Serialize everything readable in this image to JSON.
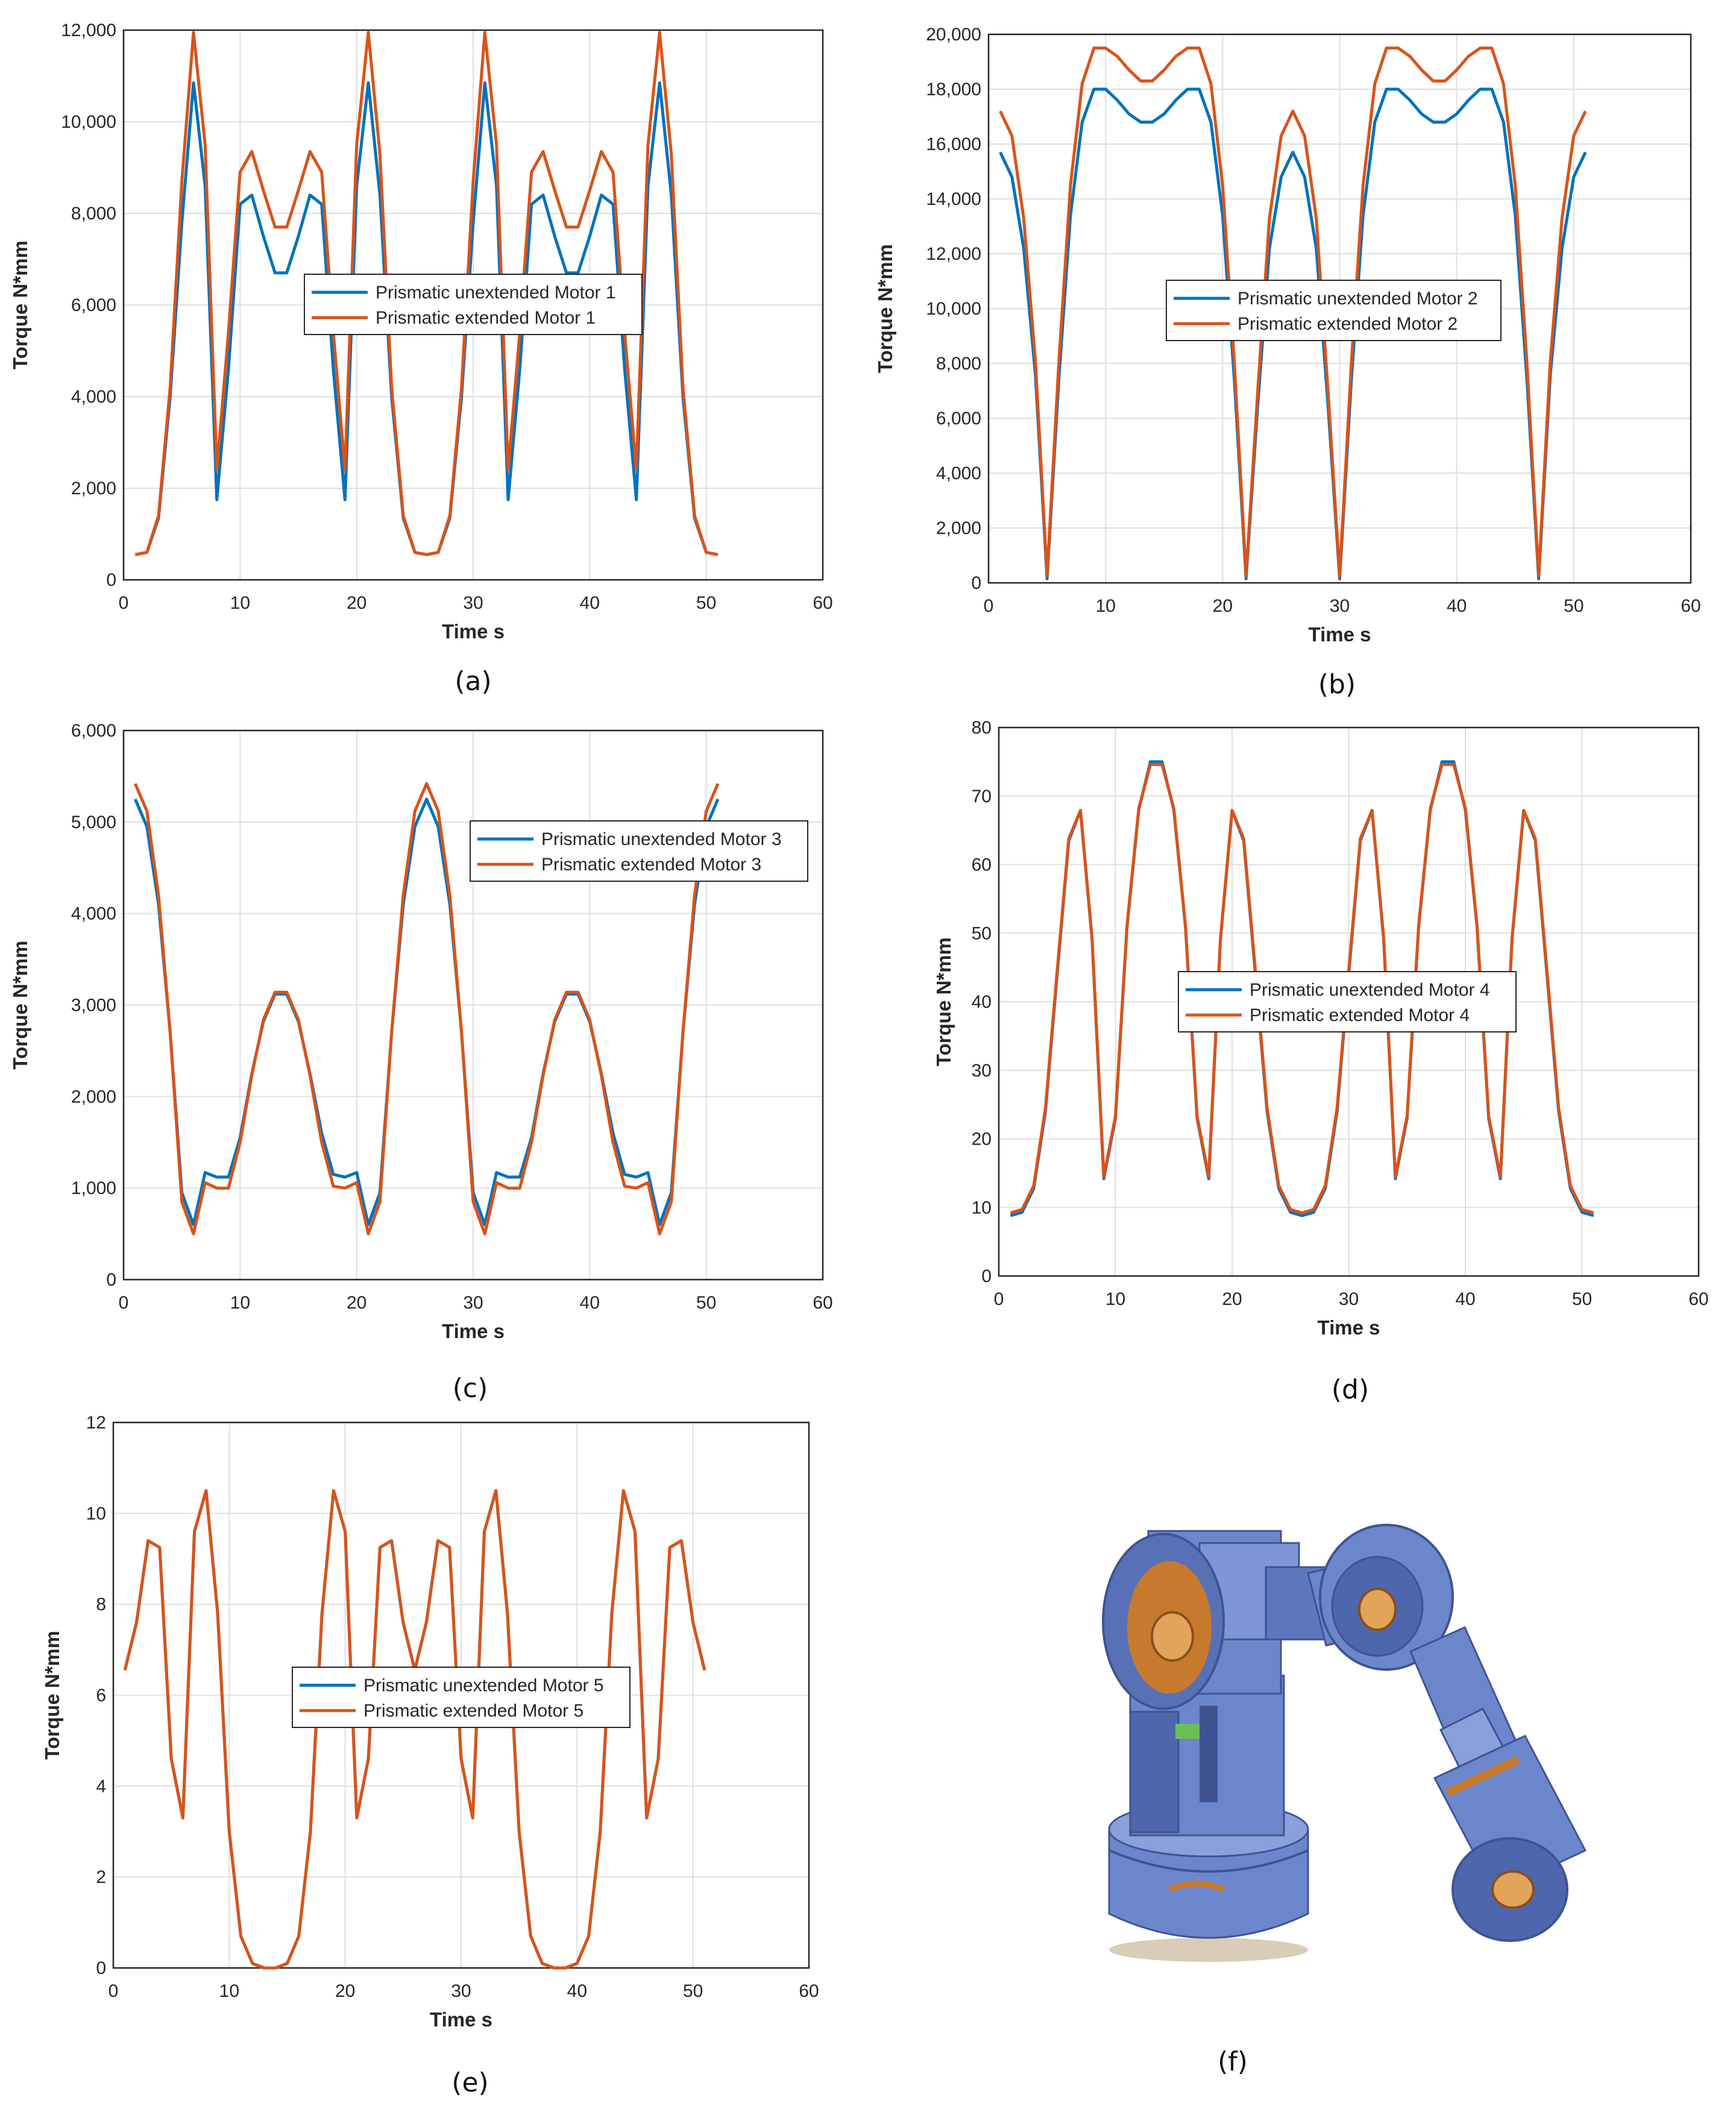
{
  "colors": {
    "unextended": "#0072BD",
    "extended": "#D95319",
    "grid": "#DFDFDF",
    "axis": "#262626"
  },
  "chart_data": [
    {
      "type": "line",
      "panel": "a",
      "caption": "(a)",
      "xlabel": "Time s",
      "ylabel": "Torque N*mm",
      "xlim": [
        0,
        60
      ],
      "ylim": [
        0,
        12000
      ],
      "xticks": [
        0,
        10,
        20,
        30,
        40,
        50,
        60
      ],
      "yticks": [
        0,
        2000,
        4000,
        6000,
        8000,
        10000,
        12000
      ],
      "ytick_labels": [
        "0",
        "2,000",
        "4,000",
        "6,000",
        "8,000",
        "10,000",
        "12,000"
      ],
      "grid": true,
      "legend": "center",
      "x": [
        1,
        2,
        3,
        4,
        5,
        6,
        7,
        8,
        9,
        10,
        11,
        12,
        13,
        14,
        15,
        16,
        17,
        18,
        19,
        20,
        21,
        22,
        23,
        24,
        25,
        26,
        27,
        28,
        29,
        30,
        31,
        32,
        33,
        34,
        35,
        36,
        37,
        38,
        39,
        40,
        41,
        42,
        43,
        44,
        45,
        46,
        47,
        48,
        49,
        50,
        51
      ],
      "series": [
        {
          "name": "Prismatic unextended Motor 1",
          "values": [
            550,
            600,
            1350,
            4000,
            7800,
            10850,
            8600,
            1750,
            4600,
            8200,
            8400,
            7500,
            6700,
            6700,
            7500,
            8400,
            8200,
            4600,
            1750,
            8600,
            10850,
            8400,
            4000,
            1350,
            600,
            550,
            600,
            1350,
            4000,
            7800,
            10850,
            8600,
            1750,
            4600,
            8200,
            8400,
            7500,
            6700,
            6700,
            7500,
            8400,
            8200,
            4600,
            1750,
            8600,
            10850,
            8400,
            4000,
            1350,
            600,
            550
          ]
        },
        {
          "name": "Prismatic extended Motor 1",
          "values": [
            550,
            600,
            1400,
            4200,
            8700,
            11950,
            9500,
            2400,
            5400,
            8900,
            9350,
            8500,
            7700,
            7700,
            8500,
            9350,
            8900,
            5400,
            2400,
            9500,
            11950,
            9300,
            4200,
            1400,
            600,
            550,
            600,
            1400,
            4200,
            8700,
            11950,
            9500,
            2400,
            5400,
            8900,
            9350,
            8500,
            7700,
            7700,
            8500,
            9350,
            8900,
            5400,
            2400,
            9500,
            11950,
            9300,
            4200,
            1400,
            600,
            550
          ]
        }
      ]
    },
    {
      "type": "line",
      "panel": "b",
      "caption": "(b)",
      "xlabel": "Time s",
      "ylabel": "Torque N*mm",
      "xlim": [
        0,
        60
      ],
      "ylim": [
        0,
        20000
      ],
      "xticks": [
        0,
        10,
        20,
        30,
        40,
        50,
        60
      ],
      "yticks": [
        0,
        2000,
        4000,
        6000,
        8000,
        10000,
        12000,
        14000,
        16000,
        18000,
        20000
      ],
      "ytick_labels": [
        "0",
        "2,000",
        "4,000",
        "6,000",
        "8,000",
        "10,000",
        "12,000",
        "14,000",
        "16,000",
        "18,000",
        "20,000"
      ],
      "grid": true,
      "legend": "center-right",
      "x": [
        1,
        2,
        3,
        4,
        5,
        6,
        7,
        8,
        9,
        10,
        11,
        12,
        13,
        14,
        15,
        16,
        17,
        18,
        19,
        20,
        21,
        22,
        23,
        24,
        25,
        26,
        27,
        28,
        29,
        30,
        31,
        32,
        33,
        34,
        35,
        36,
        37,
        38,
        39,
        40,
        41,
        42,
        43,
        44,
        45,
        46,
        47,
        48,
        49,
        50,
        51
      ],
      "series": [
        {
          "name": "Prismatic unextended Motor 2",
          "values": [
            15700,
            14800,
            12200,
            7600,
            150,
            7400,
            13400,
            16800,
            18000,
            18000,
            17600,
            17100,
            16800,
            16800,
            17100,
            17600,
            18000,
            18000,
            16800,
            13400,
            7400,
            150,
            6500,
            12200,
            14800,
            15700,
            14800,
            12200,
            6500,
            150,
            7400,
            13400,
            16800,
            18000,
            18000,
            17600,
            17100,
            16800,
            16800,
            17100,
            17600,
            18000,
            18000,
            16800,
            13400,
            7400,
            150,
            7600,
            12200,
            14800,
            15700
          ]
        },
        {
          "name": "Prismatic extended Motor 2",
          "values": [
            17200,
            16300,
            13300,
            8100,
            250,
            8000,
            14500,
            18200,
            19500,
            19500,
            19200,
            18700,
            18300,
            18300,
            18700,
            19200,
            19500,
            19500,
            18200,
            14500,
            8000,
            250,
            7000,
            13300,
            16300,
            17200,
            16300,
            13300,
            7000,
            250,
            8000,
            14500,
            18200,
            19500,
            19500,
            19200,
            18700,
            18300,
            18300,
            18700,
            19200,
            19500,
            19500,
            18200,
            14500,
            8000,
            250,
            8100,
            13300,
            16300,
            17200
          ]
        }
      ]
    },
    {
      "type": "line",
      "panel": "c",
      "caption": "(c)",
      "xlabel": "Time s",
      "ylabel": "Torque N*mm",
      "xlim": [
        0,
        60
      ],
      "ylim": [
        0,
        6000
      ],
      "xticks": [
        0,
        10,
        20,
        30,
        40,
        50,
        60
      ],
      "yticks": [
        0,
        1000,
        2000,
        3000,
        4000,
        5000,
        6000
      ],
      "ytick_labels": [
        "0",
        "1,000",
        "2,000",
        "3,000",
        "4,000",
        "5,000",
        "6,000"
      ],
      "grid": true,
      "legend": "top-right",
      "x": [
        1,
        2,
        3,
        4,
        5,
        6,
        7,
        8,
        9,
        10,
        11,
        12,
        13,
        14,
        15,
        16,
        17,
        18,
        19,
        20,
        21,
        22,
        23,
        24,
        25,
        26,
        27,
        28,
        29,
        30,
        31,
        32,
        33,
        34,
        35,
        36,
        37,
        38,
        39,
        40,
        41,
        42,
        43,
        44,
        45,
        46,
        47,
        48,
        49,
        50,
        51
      ],
      "series": [
        {
          "name": "Prismatic unextended Motor 3",
          "values": [
            5250,
            4950,
            4100,
            2700,
            950,
            600,
            1170,
            1120,
            1120,
            1550,
            2250,
            2820,
            3120,
            3120,
            2820,
            2250,
            1600,
            1150,
            1120,
            1170,
            600,
            950,
            2700,
            4100,
            4950,
            5250,
            4950,
            4100,
            2700,
            950,
            600,
            1170,
            1120,
            1120,
            1550,
            2250,
            2820,
            3120,
            3120,
            2820,
            2250,
            1600,
            1150,
            1120,
            1170,
            600,
            950,
            2700,
            4100,
            4950,
            5250
          ]
        },
        {
          "name": "Prismatic extended Motor 3",
          "values": [
            5420,
            5120,
            4200,
            2700,
            850,
            500,
            1060,
            1000,
            1000,
            1500,
            2230,
            2840,
            3140,
            3140,
            2840,
            2230,
            1500,
            1020,
            1000,
            1060,
            500,
            850,
            2700,
            4200,
            5120,
            5420,
            5120,
            4200,
            2700,
            850,
            500,
            1060,
            1000,
            1000,
            1500,
            2230,
            2840,
            3140,
            3140,
            2840,
            2230,
            1500,
            1020,
            1000,
            1060,
            500,
            850,
            2700,
            4200,
            5120,
            5420
          ]
        }
      ]
    },
    {
      "type": "line",
      "panel": "d",
      "caption": "(d)",
      "xlabel": "Time s",
      "ylabel": "Torque N*mm",
      "xlim": [
        0,
        60
      ],
      "ylim": [
        0,
        80
      ],
      "xticks": [
        0,
        10,
        20,
        30,
        40,
        50,
        60
      ],
      "yticks": [
        0,
        10,
        20,
        30,
        40,
        50,
        60,
        70,
        80
      ],
      "ytick_labels": [
        "0",
        "10",
        "20",
        "30",
        "40",
        "50",
        "60",
        "70",
        "80"
      ],
      "grid": true,
      "legend": "center",
      "x": [
        1,
        2,
        3,
        4,
        5,
        6,
        7,
        8,
        9,
        10,
        11,
        12,
        13,
        14,
        15,
        16,
        17,
        18,
        19,
        20,
        21,
        22,
        23,
        24,
        25,
        26,
        27,
        28,
        29,
        30,
        31,
        32,
        33,
        34,
        35,
        36,
        37,
        38,
        39,
        40,
        41,
        42,
        43,
        44,
        45,
        46,
        47,
        48,
        49,
        50,
        51
      ],
      "series": [
        {
          "name": "Prismatic unextended Motor 4",
          "values": [
            8.8,
            9.3,
            12.8,
            24,
            44,
            63.5,
            67.9,
            49,
            14.2,
            23,
            51,
            68,
            75,
            75,
            68,
            51,
            23,
            14.2,
            49,
            67.9,
            63.5,
            44,
            24,
            12.8,
            9.3,
            8.8,
            9.3,
            12.8,
            24,
            44,
            63.5,
            67.9,
            49,
            14.2,
            23,
            51,
            68,
            75,
            75,
            68,
            51,
            23,
            14.2,
            49,
            67.9,
            63.5,
            44,
            24,
            12.8,
            9.3,
            8.8
          ]
        },
        {
          "name": "Prismatic extended Motor 4",
          "values": [
            9.2,
            9.7,
            13.2,
            24.5,
            44.5,
            63.8,
            67.9,
            49.2,
            14.5,
            23.3,
            51.2,
            68.2,
            74.6,
            74.6,
            68.2,
            51.2,
            23.3,
            14.5,
            49.2,
            67.9,
            63.8,
            44.5,
            24.5,
            13.2,
            9.7,
            9.2,
            9.7,
            13.2,
            24.5,
            44.5,
            63.8,
            67.9,
            49.2,
            14.5,
            23.3,
            51.2,
            68.2,
            74.6,
            74.6,
            68.2,
            51.2,
            23.3,
            14.5,
            49.2,
            67.9,
            63.8,
            44.5,
            24.5,
            13.2,
            9.7,
            9.2
          ]
        }
      ]
    },
    {
      "type": "line",
      "panel": "e",
      "caption": "(e)",
      "xlabel": "Time s",
      "ylabel": "Torque N*mm",
      "xlim": [
        0,
        60
      ],
      "ylim": [
        0,
        12
      ],
      "xticks": [
        0,
        10,
        20,
        30,
        40,
        50,
        60
      ],
      "yticks": [
        0,
        2,
        4,
        6,
        8,
        10,
        12
      ],
      "ytick_labels": [
        "0",
        "2",
        "4",
        "6",
        "8",
        "10",
        "12"
      ],
      "grid": true,
      "legend": "center-left",
      "x": [
        1,
        2,
        3,
        4,
        5,
        6,
        7,
        8,
        9,
        10,
        11,
        12,
        13,
        14,
        15,
        16,
        17,
        18,
        19,
        20,
        21,
        22,
        23,
        24,
        25,
        26,
        27,
        28,
        29,
        30,
        31,
        32,
        33,
        34,
        35,
        36,
        37,
        38,
        39,
        40,
        41,
        42,
        43,
        44,
        45,
        46,
        47,
        48,
        49,
        50,
        51
      ],
      "series": [
        {
          "name": "Prismatic unextended Motor 5",
          "values": [
            6.55,
            7.6,
            9.4,
            9.25,
            4.6,
            3.3,
            9.6,
            10.5,
            7.8,
            3.0,
            0.7,
            0.1,
            0,
            0,
            0.1,
            0.7,
            3.0,
            7.8,
            10.5,
            9.6,
            3.3,
            4.6,
            9.25,
            9.4,
            7.6,
            6.55,
            7.6,
            9.4,
            9.25,
            4.6,
            3.3,
            9.6,
            10.5,
            7.8,
            3.0,
            0.7,
            0.1,
            0,
            0,
            0.1,
            0.7,
            3.0,
            7.8,
            10.5,
            9.6,
            3.3,
            4.6,
            9.25,
            9.4,
            7.6,
            6.55
          ]
        },
        {
          "name": "Prismatic extended Motor 5",
          "values": [
            6.55,
            7.6,
            9.4,
            9.25,
            4.6,
            3.3,
            9.6,
            10.5,
            7.8,
            3.0,
            0.7,
            0.1,
            0,
            0,
            0.1,
            0.7,
            3.0,
            7.8,
            10.5,
            9.6,
            3.3,
            4.6,
            9.25,
            9.4,
            7.6,
            6.55,
            7.6,
            9.4,
            9.25,
            4.6,
            3.3,
            9.6,
            10.5,
            7.8,
            3.0,
            0.7,
            0.1,
            0,
            0,
            0.1,
            0.7,
            3.0,
            7.8,
            10.5,
            9.6,
            3.3,
            4.6,
            9.25,
            9.4,
            7.6,
            6.55
          ]
        }
      ]
    }
  ],
  "robot": {
    "caption": "(f)",
    "body_color": "#6C86CC",
    "shade_color": "#3F5393",
    "accent_color": "#C77A2E"
  }
}
